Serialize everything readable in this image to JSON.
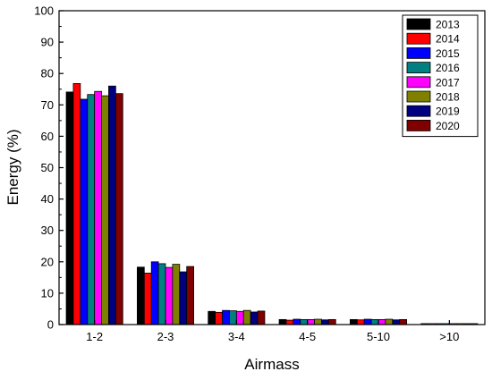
{
  "chart_data": {
    "type": "bar",
    "title": "",
    "xlabel": "Airmass",
    "ylabel": "Energy (%)",
    "ylim": [
      0,
      100
    ],
    "yticks": [
      0,
      10,
      20,
      30,
      40,
      50,
      60,
      70,
      80,
      90,
      100
    ],
    "grid": false,
    "legend_position": "top-right",
    "categories": [
      "1-2",
      "2-3",
      "3-4",
      "4-5",
      "5-10",
      ">10"
    ],
    "series": [
      {
        "name": "2013",
        "color": "#000000",
        "values": [
          74.1,
          18.3,
          4.2,
          1.6,
          1.6,
          0.3
        ]
      },
      {
        "name": "2014",
        "color": "#ff0000",
        "values": [
          76.8,
          16.4,
          3.9,
          1.4,
          1.5,
          0.3
        ]
      },
      {
        "name": "2015",
        "color": "#0000ff",
        "values": [
          71.8,
          20.0,
          4.5,
          1.7,
          1.7,
          0.3
        ]
      },
      {
        "name": "2016",
        "color": "#008080",
        "values": [
          73.3,
          19.4,
          4.4,
          1.6,
          1.6,
          0.3
        ]
      },
      {
        "name": "2017",
        "color": "#ff00ff",
        "values": [
          74.3,
          18.2,
          4.2,
          1.6,
          1.6,
          0.3
        ]
      },
      {
        "name": "2018",
        "color": "#808000",
        "values": [
          72.9,
          19.2,
          4.5,
          1.7,
          1.7,
          0.3
        ]
      },
      {
        "name": "2019",
        "color": "#000080",
        "values": [
          76.0,
          16.8,
          4.0,
          1.5,
          1.5,
          0.3
        ]
      },
      {
        "name": "2020",
        "color": "#800000",
        "values": [
          73.6,
          18.5,
          4.3,
          1.6,
          1.6,
          0.3
        ]
      }
    ]
  }
}
